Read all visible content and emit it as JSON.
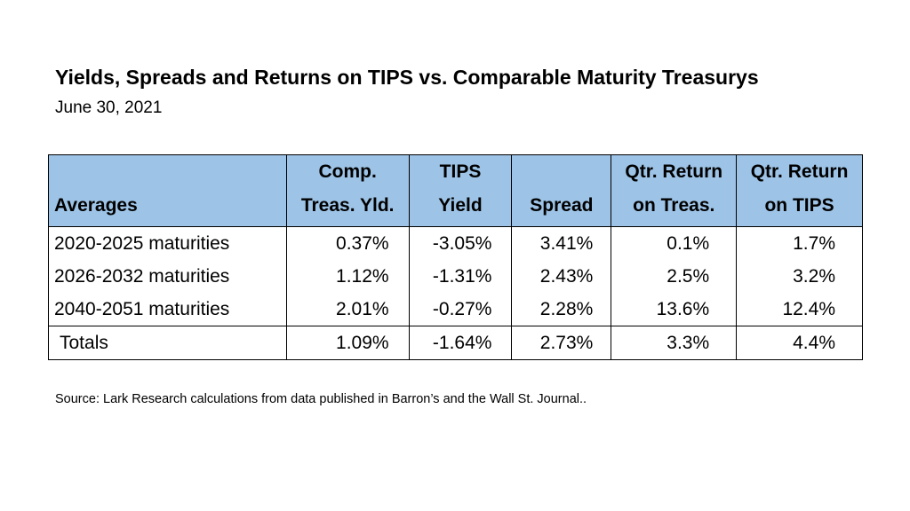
{
  "header": {
    "title": "Yields, Spreads and Returns on TIPS vs. Comparable Maturity Treasurys",
    "subtitle": "June 30, 2021"
  },
  "table": {
    "columns": [
      [
        "Averages"
      ],
      [
        "Comp.",
        "Treas. Yld."
      ],
      [
        "TIPS",
        "Yield"
      ],
      [
        "Spread"
      ],
      [
        "Qtr. Return",
        "on Treas."
      ],
      [
        "Qtr. Return",
        "on TIPS"
      ]
    ],
    "rows": [
      [
        "2020-2025 maturities",
        "0.37%",
        "-3.05%",
        "3.41%",
        "0.1%",
        "1.7%"
      ],
      [
        "2026-2032 maturities",
        "1.12%",
        "-1.31%",
        "2.43%",
        "2.5%",
        "3.2%"
      ],
      [
        "2040-2051 maturities",
        "2.01%",
        "-0.27%",
        "2.28%",
        "13.6%",
        "12.4%"
      ],
      [
        "Totals",
        "1.09%",
        "-1.64%",
        "2.73%",
        "3.3%",
        "4.4%"
      ]
    ]
  },
  "source": "Source:  Lark Research calculations from data published in Barron’s and the Wall St. Journal.."
}
